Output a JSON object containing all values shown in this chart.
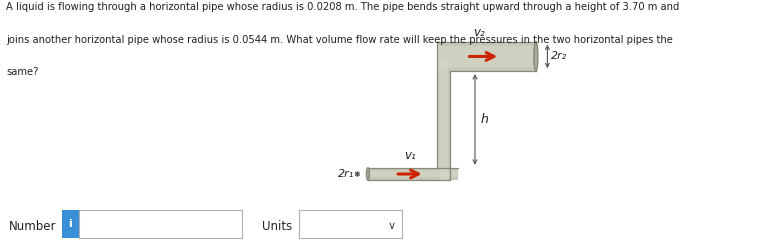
{
  "text_line1": "A liquid is flowing through a horizontal pipe whose radius is 0.0208 m. The pipe bends straight upward through a height of 3.70 m and",
  "text_line2": "joins another horizontal pipe whose radius is 0.0544 m. What volume flow rate will keep the pressures in the two horizontal pipes the",
  "text_line3": "same?",
  "pipe_color": "#c8c8b8",
  "pipe_edge_color": "#888878",
  "arrow_color": "#cc2200",
  "text_color": "#222222",
  "dim_line_color": "#555555",
  "background": "#ffffff",
  "label_v1": "v₁",
  "label_v2": "v₂",
  "label_2r1": "2r₁",
  "label_2r2": "2r₂",
  "label_h": "h",
  "number_label": "Number",
  "units_label": "Units",
  "blue_color": "#3a8fd9",
  "fig_width": 7.58,
  "fig_height": 2.47,
  "dpi": 100
}
